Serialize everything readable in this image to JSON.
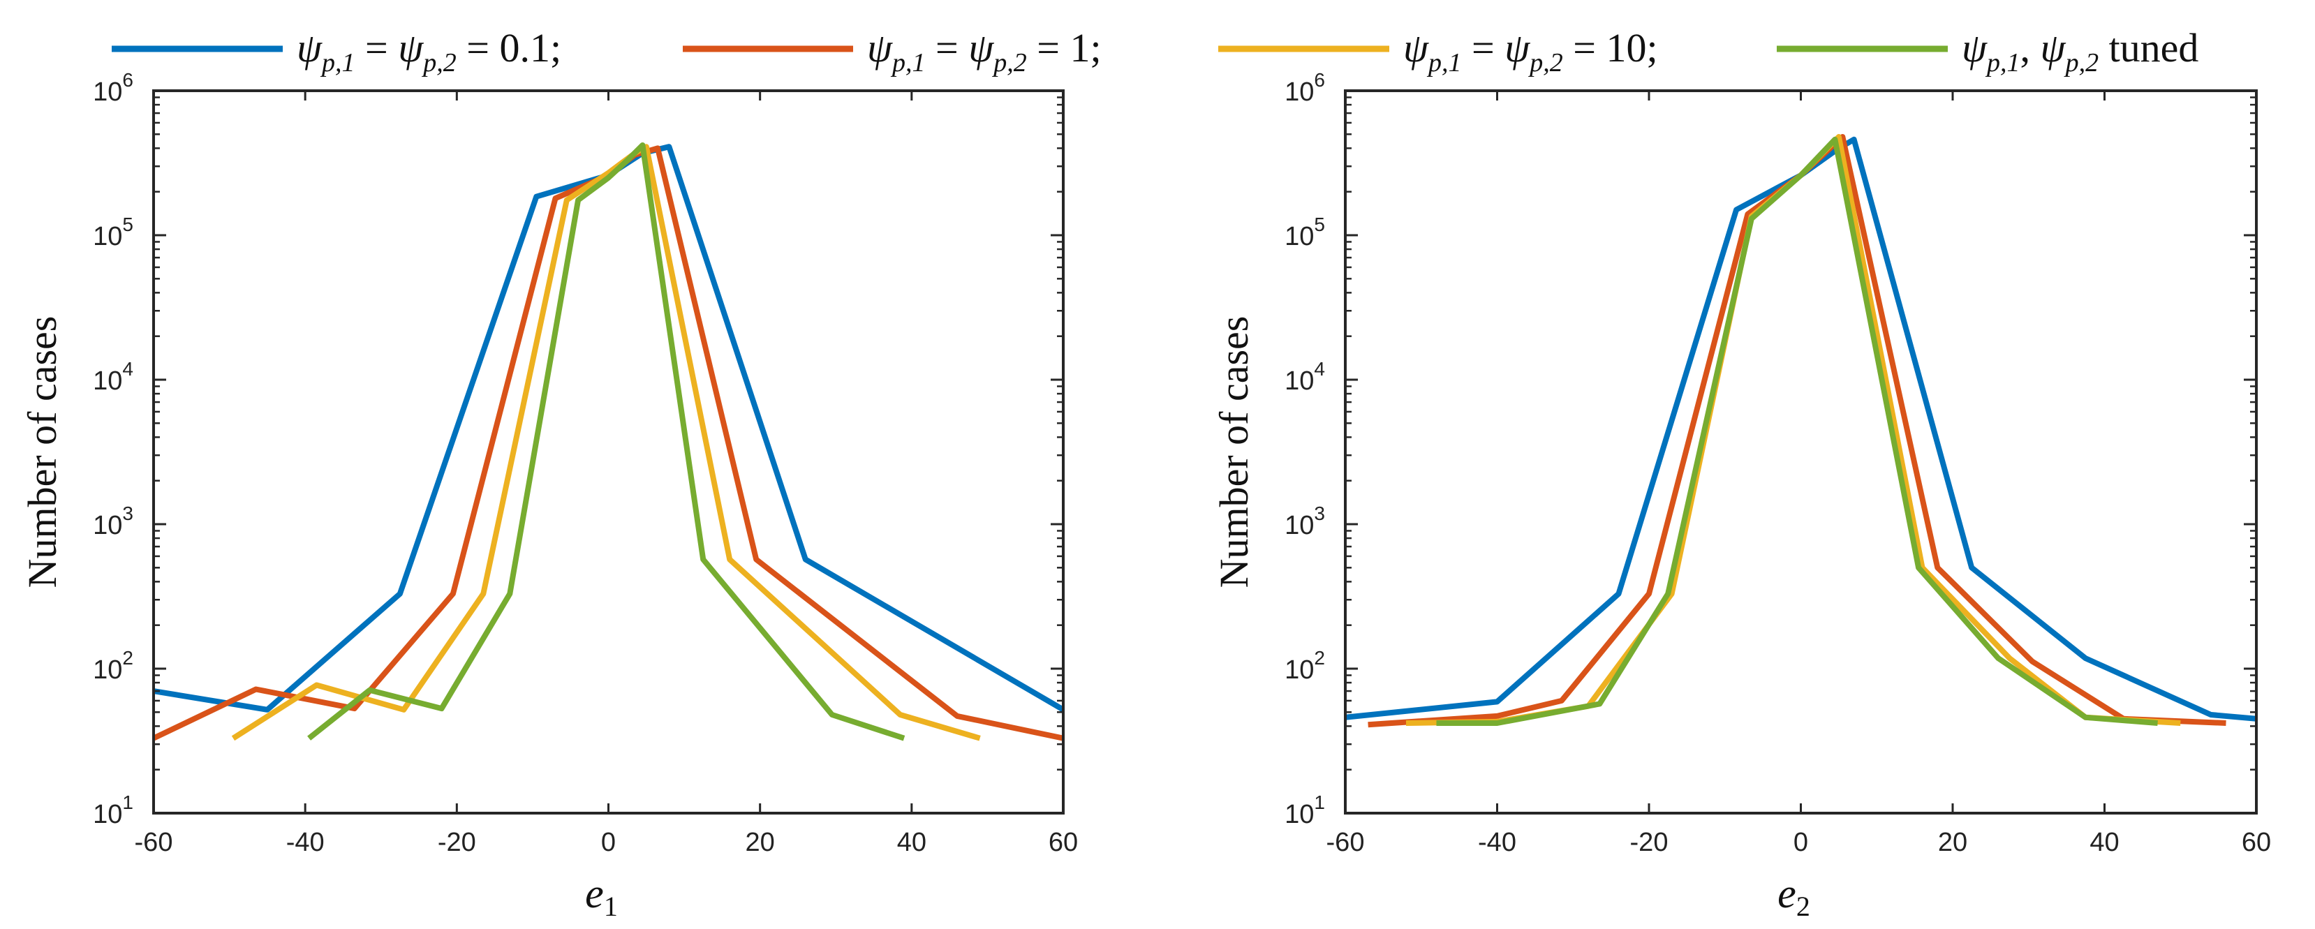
{
  "legend": [
    {
      "psi": "ψ",
      "sub1": "p,1",
      "eq": " = ",
      "sub2": "p,2",
      "tail": " = 0.1;",
      "color": "#0072BD"
    },
    {
      "psi": "ψ",
      "sub1": "p,1",
      "eq": " = ",
      "sub2": "p,2",
      "tail": " = 1;",
      "color": "#D95319"
    },
    {
      "psi": "ψ",
      "sub1": "p,1",
      "eq": " = ",
      "sub2": "p,2",
      "tail": " = 10;",
      "color": "#EDB120"
    },
    {
      "psi": "ψ",
      "sub1": "p,1",
      "eq": ",  ",
      "sub2": "p,2",
      "tail": " tuned",
      "color": "#77AC30"
    }
  ],
  "chart_data": [
    {
      "type": "line",
      "yscale": "log",
      "xlabel": "e",
      "xlabel_sub": "1",
      "ylabel": "Number of cases",
      "xlim": [
        -60,
        60
      ],
      "ylim_exp": [
        1,
        6
      ],
      "xticks": [
        "-60",
        "-40",
        "-20",
        "0",
        "20",
        "40",
        "60"
      ],
      "yticks": [
        {
          "base": "10",
          "exp": "1"
        },
        {
          "base": "10",
          "exp": "2"
        },
        {
          "base": "10",
          "exp": "3"
        },
        {
          "base": "10",
          "exp": "4"
        },
        {
          "base": "10",
          "exp": "5"
        },
        {
          "base": "10",
          "exp": "6"
        }
      ],
      "series": [
        {
          "name": "ψp,1 = ψp,2 = 0.1",
          "color": "#0072BD",
          "points": [
            [
              -60,
              70
            ],
            [
              -45,
              52
            ],
            [
              -27.5,
              330
            ],
            [
              -9.5,
              185000
            ],
            [
              0,
              260000
            ],
            [
              4.5,
              370000
            ],
            [
              8,
              410000
            ],
            [
              26,
              570
            ],
            [
              60,
              52
            ]
          ]
        },
        {
          "name": "ψp,1 = ψp,2 = 1",
          "color": "#D95319",
          "points": [
            [
              -60,
              33
            ],
            [
              -46.5,
              72
            ],
            [
              -33.5,
              53
            ],
            [
              -20.5,
              330
            ],
            [
              -7,
              180000
            ],
            [
              0,
              260000
            ],
            [
              3.5,
              360000
            ],
            [
              6.5,
              400000
            ],
            [
              19.5,
              570
            ],
            [
              46,
              47
            ],
            [
              60,
              33
            ]
          ]
        },
        {
          "name": "ψp,1 = ψp,2 = 10",
          "color": "#EDB120",
          "points": [
            [
              -49.5,
              33
            ],
            [
              -38.5,
              77
            ],
            [
              -27,
              52
            ],
            [
              -16.5,
              330
            ],
            [
              -5.5,
              175000
            ],
            [
              0,
              270000
            ],
            [
              3.5,
              370000
            ],
            [
              5,
              410000
            ],
            [
              16,
              570
            ],
            [
              38.5,
              48
            ],
            [
              49,
              33
            ]
          ]
        },
        {
          "name": "ψp,1, ψp,2 tuned",
          "color": "#77AC30",
          "points": [
            [
              -39.5,
              33
            ],
            [
              -31.5,
              71
            ],
            [
              -22,
              53
            ],
            [
              -13,
              330
            ],
            [
              -4,
              175000
            ],
            [
              0,
              250000
            ],
            [
              2.5,
              330000
            ],
            [
              4.5,
              420000
            ],
            [
              12.5,
              570
            ],
            [
              29.5,
              48
            ],
            [
              39,
              33
            ]
          ]
        }
      ]
    },
    {
      "type": "line",
      "yscale": "log",
      "xlabel": "e",
      "xlabel_sub": "2",
      "ylabel": "Number of cases",
      "xlim": [
        -60,
        60
      ],
      "ylim_exp": [
        1,
        6
      ],
      "xticks": [
        "-60",
        "-40",
        "-20",
        "0",
        "20",
        "40",
        "60"
      ],
      "yticks": [
        {
          "base": "10",
          "exp": "1"
        },
        {
          "base": "10",
          "exp": "2"
        },
        {
          "base": "10",
          "exp": "3"
        },
        {
          "base": "10",
          "exp": "4"
        },
        {
          "base": "10",
          "exp": "5"
        },
        {
          "base": "10",
          "exp": "6"
        }
      ],
      "series": [
        {
          "name": "ψp,1 = ψp,2 = 0.1",
          "color": "#0072BD",
          "points": [
            [
              -60,
              46
            ],
            [
              -40,
              59
            ],
            [
              -24,
              330
            ],
            [
              -8.5,
              150000
            ],
            [
              0,
              260000
            ],
            [
              5,
              400000
            ],
            [
              7,
              460000
            ],
            [
              22.5,
              500
            ],
            [
              37.5,
              118
            ],
            [
              54,
              48
            ],
            [
              60,
              45
            ]
          ]
        },
        {
          "name": "ψp,1 = ψp,2 = 1",
          "color": "#D95319",
          "points": [
            [
              -57,
              41
            ],
            [
              -40,
              47
            ],
            [
              -31.5,
              60
            ],
            [
              -20,
              330
            ],
            [
              -7,
              140000
            ],
            [
              0,
              260000
            ],
            [
              5.5,
              480000
            ],
            [
              18,
              500
            ],
            [
              30.5,
              112
            ],
            [
              42.5,
              45
            ],
            [
              56,
              42
            ]
          ]
        },
        {
          "name": "ψp,1 = ψp,2 = 10",
          "color": "#EDB120",
          "points": [
            [
              -52,
              42
            ],
            [
              -40,
              43
            ],
            [
              -28,
              55
            ],
            [
              -17,
              330
            ],
            [
              -6.5,
              135000
            ],
            [
              0,
              260000
            ],
            [
              5,
              480000
            ],
            [
              16,
              500
            ],
            [
              27.5,
              118
            ],
            [
              37.5,
              46
            ],
            [
              50,
              42
            ]
          ]
        },
        {
          "name": "ψp,1, ψp,2 tuned",
          "color": "#77AC30",
          "points": [
            [
              -48,
              42
            ],
            [
              -40,
              42
            ],
            [
              -26.5,
              57
            ],
            [
              -17.5,
              330
            ],
            [
              -6.5,
              130000
            ],
            [
              0,
              260000
            ],
            [
              4.5,
              460000
            ],
            [
              15.5,
              500
            ],
            [
              26,
              118
            ],
            [
              37.5,
              46
            ],
            [
              47,
              42
            ]
          ]
        }
      ]
    }
  ]
}
